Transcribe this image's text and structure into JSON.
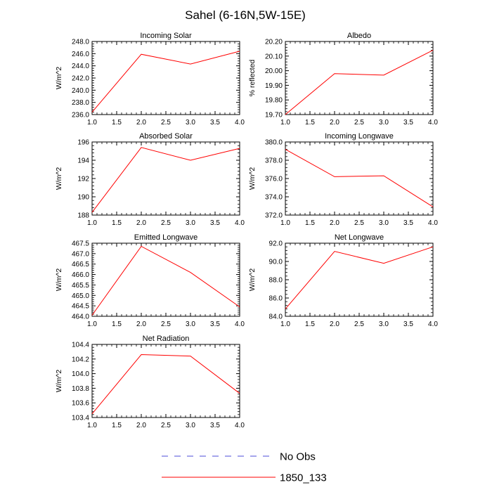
{
  "title": "Sahel (6-16N,5W-15E)",
  "colors": {
    "model": "#ff0000",
    "obs": "#4d4dd9",
    "axis": "#000000"
  },
  "legend": [
    {
      "label": "No Obs",
      "style": "dashed",
      "color": "#4d4dd9"
    },
    {
      "label": "1850_133",
      "style": "solid",
      "color": "#ff0000"
    }
  ],
  "chart_data": [
    {
      "type": "line",
      "title": "Incoming Solar",
      "ylabel": "W/m^2",
      "xlim": [
        1.0,
        4.0
      ],
      "ylim": [
        236.0,
        248.0
      ],
      "xticks": [
        "1.0",
        "1.5",
        "2.0",
        "2.5",
        "3.0",
        "3.5",
        "4.0"
      ],
      "yticks": [
        "236.0",
        "238.0",
        "240.0",
        "242.0",
        "244.0",
        "246.0",
        "248.0"
      ],
      "series": [
        {
          "name": "1850_133",
          "x": [
            1,
            2,
            3,
            4
          ],
          "y": [
            236.4,
            245.9,
            244.3,
            246.4
          ]
        }
      ]
    },
    {
      "type": "line",
      "title": "Albedo",
      "ylabel": "% reflected",
      "xlim": [
        1.0,
        4.0
      ],
      "ylim": [
        19.7,
        20.2
      ],
      "xticks": [
        "1.0",
        "1.5",
        "2.0",
        "2.5",
        "3.0",
        "3.5",
        "4.0"
      ],
      "yticks": [
        "19.70",
        "19.80",
        "19.90",
        "20.00",
        "20.10",
        "20.20"
      ],
      "series": [
        {
          "name": "1850_133",
          "x": [
            1,
            2,
            3,
            4
          ],
          "y": [
            19.7,
            19.98,
            19.97,
            20.14
          ]
        }
      ]
    },
    {
      "type": "line",
      "title": "Absorbed Solar",
      "ylabel": "W/m^2",
      "xlim": [
        1.0,
        4.0
      ],
      "ylim": [
        188.0,
        196.0
      ],
      "xticks": [
        "1.0",
        "1.5",
        "2.0",
        "2.5",
        "3.0",
        "3.5",
        "4.0"
      ],
      "yticks": [
        "188",
        "190",
        "192",
        "194",
        "196"
      ],
      "series": [
        {
          "name": "1850_133",
          "x": [
            1,
            2,
            3,
            4
          ],
          "y": [
            188.3,
            195.4,
            194.0,
            195.3
          ]
        }
      ]
    },
    {
      "type": "line",
      "title": "Incoming Longwave",
      "ylabel": "W/m^2",
      "xlim": [
        1.0,
        4.0
      ],
      "ylim": [
        372.0,
        380.0
      ],
      "xticks": [
        "1.0",
        "1.5",
        "2.0",
        "2.5",
        "3.0",
        "3.5",
        "4.0"
      ],
      "yticks": [
        "372.0",
        "374.0",
        "376.0",
        "378.0",
        "380.0"
      ],
      "series": [
        {
          "name": "1850_133",
          "x": [
            1,
            2,
            3,
            4
          ],
          "y": [
            379.2,
            376.2,
            376.3,
            372.9
          ]
        }
      ]
    },
    {
      "type": "line",
      "title": "Emitted Longwave",
      "ylabel": "W/m^2",
      "xlim": [
        1.0,
        4.0
      ],
      "ylim": [
        464.0,
        467.5
      ],
      "xticks": [
        "1.0",
        "1.5",
        "2.0",
        "2.5",
        "3.0",
        "3.5",
        "4.0"
      ],
      "yticks": [
        "464.0",
        "464.5",
        "465.0",
        "465.5",
        "466.0",
        "466.5",
        "467.0",
        "467.5"
      ],
      "series": [
        {
          "name": "1850_133",
          "x": [
            1,
            2,
            3,
            4
          ],
          "y": [
            464.05,
            467.35,
            466.1,
            464.45
          ]
        }
      ]
    },
    {
      "type": "line",
      "title": "Net Longwave",
      "ylabel": "W/m^2",
      "xlim": [
        1.0,
        4.0
      ],
      "ylim": [
        84.0,
        92.0
      ],
      "xticks": [
        "1.0",
        "1.5",
        "2.0",
        "2.5",
        "3.0",
        "3.5",
        "4.0"
      ],
      "yticks": [
        "84.0",
        "86.0",
        "88.0",
        "90.0",
        "92.0"
      ],
      "series": [
        {
          "name": "1850_133",
          "x": [
            1,
            2,
            3,
            4
          ],
          "y": [
            84.8,
            91.1,
            89.8,
            91.6
          ]
        }
      ]
    },
    {
      "type": "line",
      "title": "Net Radiation",
      "ylabel": "W/m^2",
      "xlim": [
        1.0,
        4.0
      ],
      "ylim": [
        103.4,
        104.4
      ],
      "xticks": [
        "1.0",
        "1.5",
        "2.0",
        "2.5",
        "3.0",
        "3.5",
        "4.0"
      ],
      "yticks": [
        "103.4",
        "103.6",
        "103.8",
        "104.0",
        "104.2",
        "104.4"
      ],
      "series": [
        {
          "name": "1850_133",
          "x": [
            1,
            2,
            3,
            4
          ],
          "y": [
            103.45,
            104.26,
            104.24,
            103.73
          ]
        }
      ]
    }
  ]
}
